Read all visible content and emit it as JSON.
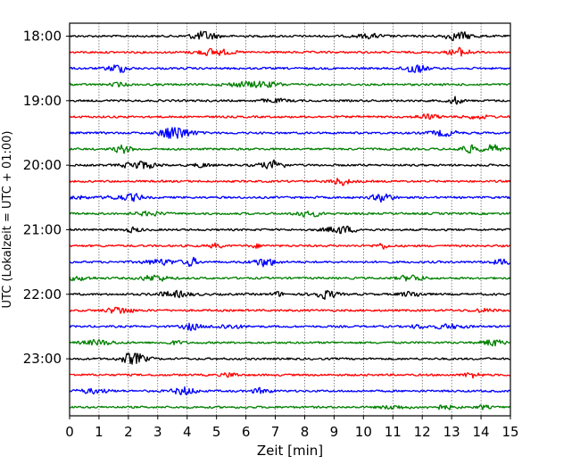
{
  "chart_data": {
    "type": "line",
    "description_kind": "seismogram-helicorder",
    "xlabel": "Zeit  [min]",
    "ylabel": "UTC (Lokalzeit = UTC + 01:00)",
    "xlim": [
      0,
      15
    ],
    "xticks": [
      0,
      1,
      2,
      3,
      4,
      5,
      6,
      7,
      8,
      9,
      10,
      11,
      12,
      13,
      14,
      15
    ],
    "x_grid": true,
    "y_tick_labels": [
      "18:00",
      "19:00",
      "20:00",
      "21:00",
      "22:00",
      "23:00"
    ],
    "y_tick_rows": [
      0,
      4,
      8,
      12,
      16,
      20
    ],
    "row_count": 24,
    "row_colors": [
      "#000000",
      "#ff0000",
      "#0000ff",
      "#008000"
    ],
    "rows_start_utc": "18:00",
    "minutes_per_row": 15
  }
}
